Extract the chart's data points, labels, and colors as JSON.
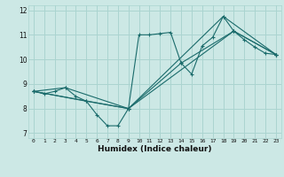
{
  "xlabel": "Humidex (Indice chaleur)",
  "xlim": [
    -0.5,
    23.5
  ],
  "ylim": [
    6.8,
    12.2
  ],
  "yticks": [
    7,
    8,
    9,
    10,
    11,
    12
  ],
  "xticks": [
    0,
    1,
    2,
    3,
    4,
    5,
    6,
    7,
    8,
    9,
    10,
    11,
    12,
    13,
    14,
    15,
    16,
    17,
    18,
    19,
    20,
    21,
    22,
    23
  ],
  "xtick_labels": [
    "0",
    "1",
    "2",
    "3",
    "4",
    "5",
    "6",
    "7",
    "8",
    "9",
    "10",
    "11",
    "12",
    "13",
    "14",
    "15",
    "16",
    "17",
    "18",
    "19",
    "20",
    "21",
    "22",
    "23"
  ],
  "bg_color": "#cce8e5",
  "grid_color": "#aad4d0",
  "line_color": "#1a6b6b",
  "line1": {
    "x": [
      0,
      1,
      2,
      3,
      4,
      5,
      6,
      7,
      8,
      9,
      10,
      11,
      12,
      13,
      14,
      15,
      16,
      17,
      18,
      19,
      20,
      21,
      22,
      23
    ],
    "y": [
      8.7,
      8.6,
      8.7,
      8.85,
      8.5,
      8.3,
      7.75,
      7.3,
      7.3,
      8.0,
      11.0,
      11.0,
      11.05,
      11.1,
      9.85,
      9.4,
      10.55,
      10.9,
      11.75,
      11.15,
      10.8,
      10.5,
      10.25,
      10.2
    ]
  },
  "line2": {
    "x": [
      0,
      3,
      9,
      19,
      23
    ],
    "y": [
      8.7,
      8.85,
      8.0,
      11.15,
      10.2
    ]
  },
  "line3": {
    "x": [
      0,
      5,
      9,
      14,
      19,
      23
    ],
    "y": [
      8.7,
      8.3,
      8.0,
      9.85,
      11.15,
      10.2
    ]
  },
  "line4": {
    "x": [
      0,
      9,
      18,
      23
    ],
    "y": [
      8.7,
      8.0,
      11.75,
      10.2
    ]
  }
}
